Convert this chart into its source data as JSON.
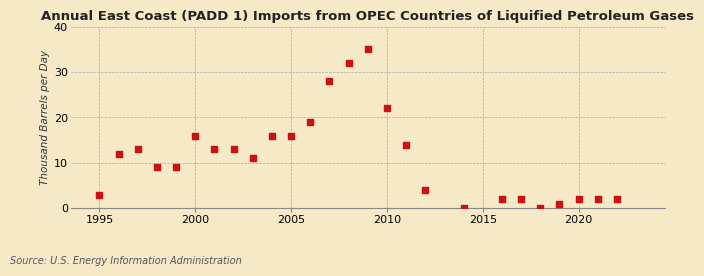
{
  "title": "Annual East Coast (PADD 1) Imports from OPEC Countries of Liquified Petroleum Gases",
  "ylabel": "Thousand Barrels per Day",
  "source": "Source: U.S. Energy Information Administration",
  "background_color": "#f5e9c8",
  "marker_color": "#cc1111",
  "years": [
    1995,
    1996,
    1997,
    1998,
    1999,
    2000,
    2001,
    2002,
    2003,
    2004,
    2005,
    2006,
    2007,
    2008,
    2009,
    2010,
    2011,
    2012,
    2014,
    2016,
    2017,
    2018,
    2019,
    2020,
    2021,
    2022
  ],
  "values": [
    3,
    12,
    13,
    9,
    9,
    16,
    13,
    13,
    11,
    16,
    16,
    19,
    28,
    32,
    35,
    22,
    14,
    4,
    0,
    2,
    2,
    0,
    1,
    2,
    2,
    2
  ],
  "xlim": [
    1993.5,
    2024.5
  ],
  "ylim": [
    0,
    40
  ],
  "yticks": [
    0,
    10,
    20,
    30,
    40
  ],
  "xticks": [
    1995,
    2000,
    2005,
    2010,
    2015,
    2020
  ],
  "title_fontsize": 9.5,
  "ylabel_fontsize": 7.5,
  "source_fontsize": 7.0,
  "tick_fontsize": 8.0
}
